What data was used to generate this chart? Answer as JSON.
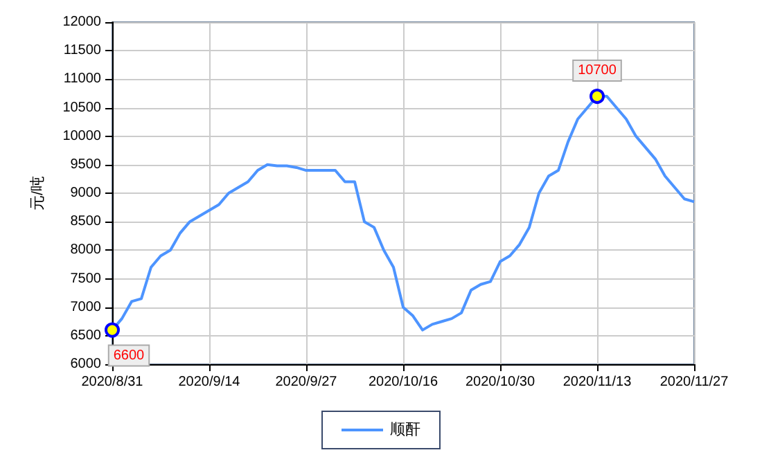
{
  "chart_data": {
    "type": "line",
    "ylabel": "元/吨",
    "categories": [
      "2020/8/31",
      null,
      null,
      null,
      null,
      null,
      null,
      null,
      null,
      null,
      "2020/9/14",
      null,
      null,
      null,
      null,
      null,
      null,
      null,
      null,
      null,
      "2020/9/27",
      null,
      null,
      null,
      null,
      null,
      null,
      null,
      null,
      null,
      "2020/10/16",
      null,
      null,
      null,
      null,
      null,
      null,
      null,
      null,
      null,
      "2020/10/30",
      null,
      null,
      null,
      null,
      null,
      null,
      null,
      null,
      null,
      "2020/11/13",
      null,
      null,
      null,
      null,
      null,
      null,
      null,
      null,
      null,
      "2020/11/27"
    ],
    "series": [
      {
        "name": "顺酐",
        "color": "#4d94ff",
        "values": [
          6600,
          6800,
          7100,
          7150,
          7700,
          7900,
          8000,
          8300,
          8500,
          8600,
          8700,
          8800,
          9000,
          9100,
          9200,
          9400,
          9500,
          9480,
          9480,
          9450,
          9400,
          9400,
          9400,
          9400,
          9200,
          9200,
          8500,
          8400,
          8000,
          7700,
          7000,
          6850,
          6600,
          6700,
          6750,
          6800,
          6900,
          7300,
          7400,
          7450,
          7800,
          7900,
          8100,
          8400,
          9000,
          9300,
          9400,
          9900,
          10300,
          10500,
          10700,
          10700,
          10500,
          10300,
          10000,
          9800,
          9600,
          9300,
          9100,
          8900,
          8850
        ],
        "value_labels": [
          "6600",
          null,
          null,
          null,
          null,
          null,
          null,
          null,
          null,
          null,
          null,
          null,
          null,
          null,
          null,
          null,
          null,
          null,
          null,
          null,
          null,
          null,
          null,
          null,
          null,
          null,
          null,
          null,
          null,
          null,
          null,
          null,
          null,
          null,
          null,
          null,
          null,
          null,
          null,
          null,
          null,
          null,
          null,
          null,
          null,
          null,
          null,
          null,
          null,
          null,
          "10700",
          null,
          null,
          null,
          null,
          null,
          null,
          null,
          null,
          null,
          null
        ]
      }
    ],
    "ylim": [
      6000,
      12000
    ],
    "yticks": [
      6000,
      6500,
      7000,
      7500,
      8000,
      8500,
      9000,
      9500,
      10000,
      10500,
      11000,
      11500,
      12000
    ],
    "grid": true,
    "legend": "bottom",
    "line_style": "solid"
  }
}
